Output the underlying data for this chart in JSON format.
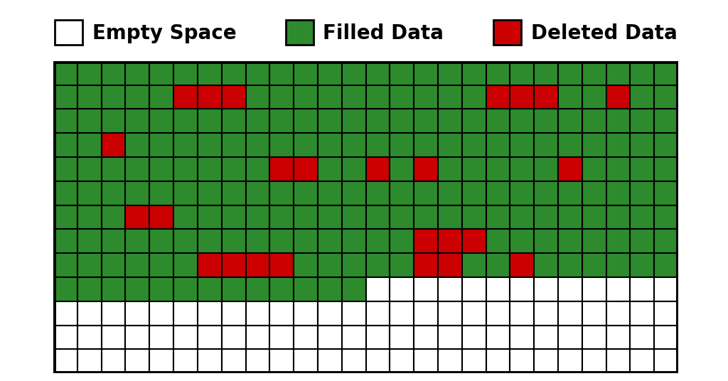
{
  "ncols": 26,
  "nrows": 13,
  "green_color": "#2d8b2d",
  "red_color": "#cc0000",
  "white_color": "#ffffff",
  "black_color": "#000000",
  "background_color": "#ffffff",
  "legend_empty_label": "Empty Space",
  "legend_filled_label": "Filled Data",
  "legend_deleted_label": "Deleted Data",
  "legend_fontsize": 20,
  "border_linewidth": 5.0,
  "cell_linewidth": 1.5,
  "grid": [
    [
      "G",
      "G",
      "G",
      "G",
      "G",
      "G",
      "G",
      "G",
      "G",
      "G",
      "G",
      "G",
      "G",
      "G",
      "G",
      "G",
      "G",
      "G",
      "G",
      "G",
      "G",
      "G",
      "G",
      "G",
      "G",
      "G"
    ],
    [
      "G",
      "G",
      "G",
      "G",
      "G",
      "R",
      "R",
      "R",
      "G",
      "G",
      "G",
      "G",
      "G",
      "G",
      "G",
      "G",
      "G",
      "G",
      "R",
      "R",
      "R",
      "G",
      "G",
      "R",
      "G",
      "G"
    ],
    [
      "G",
      "G",
      "G",
      "G",
      "G",
      "G",
      "G",
      "G",
      "G",
      "G",
      "G",
      "G",
      "G",
      "G",
      "G",
      "G",
      "G",
      "G",
      "G",
      "G",
      "G",
      "G",
      "G",
      "G",
      "G",
      "G"
    ],
    [
      "G",
      "G",
      "R",
      "G",
      "G",
      "G",
      "G",
      "G",
      "G",
      "G",
      "G",
      "G",
      "G",
      "G",
      "G",
      "G",
      "G",
      "G",
      "G",
      "G",
      "G",
      "G",
      "G",
      "G",
      "G",
      "G"
    ],
    [
      "G",
      "G",
      "G",
      "G",
      "G",
      "G",
      "G",
      "G",
      "G",
      "R",
      "R",
      "G",
      "G",
      "R",
      "G",
      "R",
      "G",
      "G",
      "G",
      "G",
      "G",
      "R",
      "G",
      "G",
      "G",
      "G"
    ],
    [
      "G",
      "G",
      "G",
      "G",
      "G",
      "G",
      "G",
      "G",
      "G",
      "G",
      "G",
      "G",
      "G",
      "G",
      "G",
      "G",
      "G",
      "G",
      "G",
      "G",
      "G",
      "G",
      "G",
      "G",
      "G",
      "G"
    ],
    [
      "G",
      "G",
      "G",
      "R",
      "R",
      "G",
      "G",
      "G",
      "G",
      "G",
      "G",
      "G",
      "G",
      "G",
      "G",
      "G",
      "G",
      "G",
      "G",
      "G",
      "G",
      "G",
      "G",
      "G",
      "G",
      "G"
    ],
    [
      "G",
      "G",
      "G",
      "G",
      "G",
      "G",
      "G",
      "G",
      "G",
      "G",
      "G",
      "G",
      "G",
      "G",
      "G",
      "R",
      "R",
      "R",
      "G",
      "G",
      "G",
      "G",
      "G",
      "G",
      "G",
      "G"
    ],
    [
      "G",
      "G",
      "G",
      "G",
      "G",
      "G",
      "R",
      "R",
      "R",
      "R",
      "G",
      "G",
      "G",
      "G",
      "G",
      "R",
      "R",
      "G",
      "G",
      "R",
      "G",
      "G",
      "G",
      "G",
      "G",
      "G"
    ],
    [
      "G",
      "G",
      "G",
      "G",
      "G",
      "G",
      "G",
      "G",
      "G",
      "G",
      "G",
      "G",
      "G",
      "W",
      "W",
      "W",
      "W",
      "W",
      "W",
      "W",
      "W",
      "W",
      "W",
      "W",
      "W",
      "W"
    ],
    [
      "W",
      "W",
      "W",
      "W",
      "W",
      "W",
      "W",
      "W",
      "W",
      "W",
      "W",
      "W",
      "W",
      "W",
      "W",
      "W",
      "W",
      "W",
      "W",
      "W",
      "W",
      "W",
      "W",
      "W",
      "W",
      "W"
    ],
    [
      "W",
      "W",
      "W",
      "W",
      "W",
      "W",
      "W",
      "W",
      "W",
      "W",
      "W",
      "W",
      "W",
      "W",
      "W",
      "W",
      "W",
      "W",
      "W",
      "W",
      "W",
      "W",
      "W",
      "W",
      "W",
      "W"
    ],
    [
      "W",
      "W",
      "W",
      "W",
      "W",
      "W",
      "W",
      "W",
      "W",
      "W",
      "W",
      "W",
      "W",
      "W",
      "W",
      "W",
      "W",
      "W",
      "W",
      "W",
      "W",
      "W",
      "W",
      "W",
      "W",
      "W"
    ]
  ]
}
